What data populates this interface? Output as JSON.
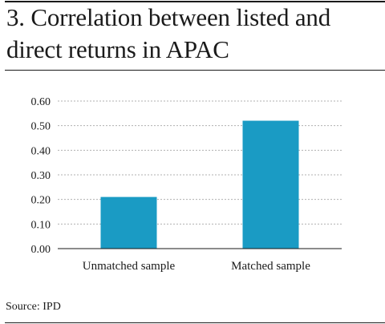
{
  "title": "3. Correlation between listed and direct returns in APAC",
  "source": "Source: IPD",
  "colors": {
    "bar": "#1a9bc4",
    "gridline": "#b0b0b0",
    "axis": "#1a1a1a",
    "text": "#1a1a1a"
  },
  "chart_data": {
    "type": "bar",
    "categories": [
      "Unmatched sample",
      "Matched sample"
    ],
    "values": [
      0.21,
      0.52
    ],
    "yticks": [
      "0.00",
      "0.10",
      "0.20",
      "0.30",
      "0.40",
      "0.50",
      "0.60"
    ],
    "ylim": [
      0,
      0.6
    ],
    "grid": true,
    "legend": "none"
  }
}
